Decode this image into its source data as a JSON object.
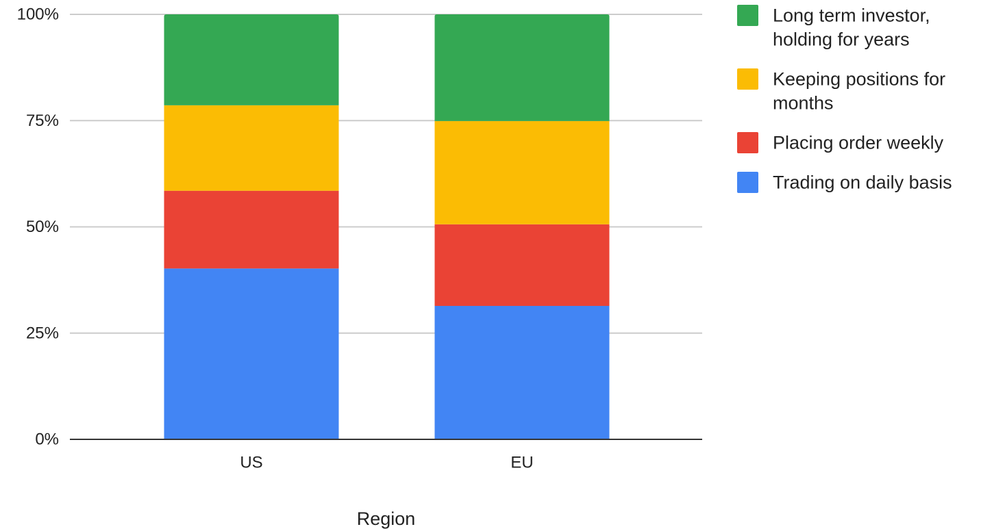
{
  "chart_data": {
    "type": "bar",
    "stacked": true,
    "normalized": true,
    "title": "",
    "xlabel": "Region",
    "ylabel": "",
    "categories": [
      "US",
      "EU"
    ],
    "ylim": [
      0,
      100
    ],
    "y_ticks": [
      "0%",
      "25%",
      "50%",
      "75%",
      "100%"
    ],
    "grid": true,
    "legend_position": "right",
    "series": [
      {
        "name": "Trading on daily basis",
        "color": "#4285f4",
        "values": [
          40.2,
          31.4
        ]
      },
      {
        "name": "Placing order weekly",
        "color": "#ea4335",
        "values": [
          18.3,
          19.2
        ]
      },
      {
        "name": "Keeping positions for months",
        "color": "#fbbc04",
        "values": [
          20.1,
          24.3
        ]
      },
      {
        "name": "Long term investor, holding for years",
        "color": "#34a853",
        "values": [
          21.4,
          25.1
        ]
      }
    ],
    "legend": [
      {
        "lines": [
          "Long term investor,",
          "holding for years"
        ],
        "color": "#34a853"
      },
      {
        "lines": [
          "Keeping positions for",
          "months"
        ],
        "color": "#fbbc04"
      },
      {
        "lines": [
          "Placing order weekly"
        ],
        "color": "#ea4335"
      },
      {
        "lines": [
          "Trading on daily basis"
        ],
        "color": "#4285f4"
      }
    ]
  }
}
